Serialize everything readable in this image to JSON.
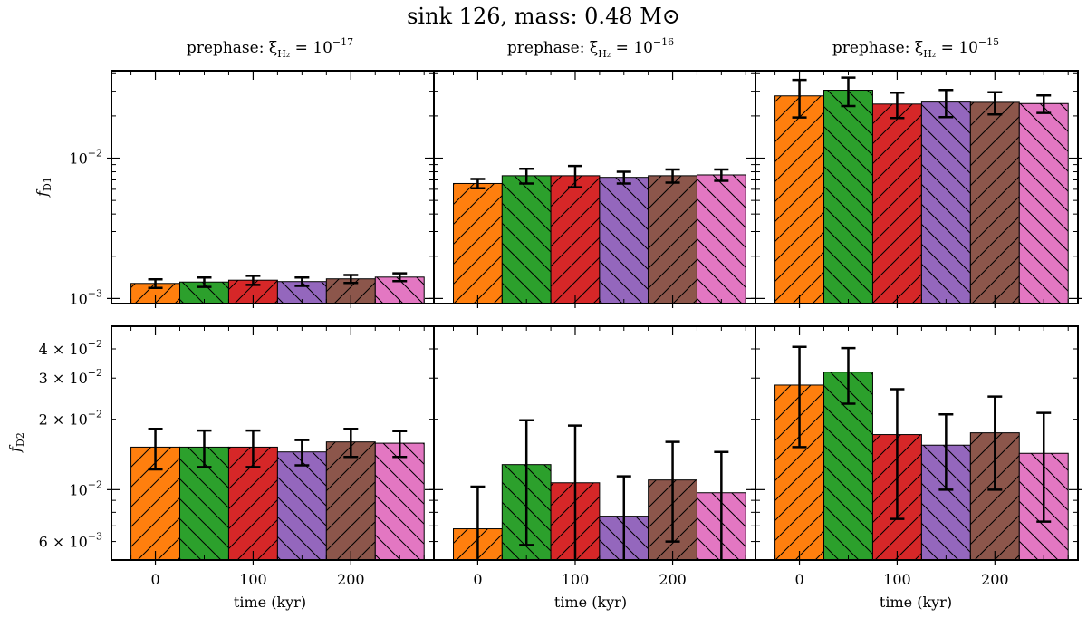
{
  "figure": {
    "title": "sink 126, mass: 0.48 M⊙",
    "xlabel": "time (kyr)",
    "row_labels": [
      "f",
      "f"
    ],
    "row_label_subs": [
      "D1",
      "D2"
    ],
    "column_titles": [
      {
        "prefix": "prephase: ξ",
        "sub": "H₂",
        "eq": " = 10",
        "exp": "−17"
      },
      {
        "prefix": "prephase: ξ",
        "sub": "H₂",
        "eq": " = 10",
        "exp": "−16"
      },
      {
        "prefix": "prephase: ξ",
        "sub": "H₂",
        "eq": " = 10",
        "exp": "−15"
      }
    ],
    "colors": [
      "#ff7f0e",
      "#2ca02c",
      "#d62728",
      "#9467bd",
      "#8c564b",
      "#e377c2"
    ],
    "hatch_directions": [
      "/",
      "\\",
      "/",
      "\\",
      "/",
      "\\"
    ]
  },
  "chart_data": {
    "type": "bar",
    "scale": "log",
    "x": [
      0,
      50,
      100,
      150,
      200,
      250
    ],
    "bar_width": 50,
    "xlim": [
      -45,
      285
    ],
    "xticks": [
      0,
      100,
      200
    ],
    "xtick_labels": [
      "0",
      "100",
      "200"
    ],
    "rows": [
      {
        "name": "fD1",
        "ylim": [
          0.00092,
          0.042
        ],
        "yticks": [
          {
            "value": 0.001,
            "mant": "10",
            "exp": "−3"
          },
          {
            "value": 0.01,
            "mant": "10",
            "exp": "−2"
          }
        ],
        "panels": [
          {
            "values": [
              0.00128,
              0.00131,
              0.00135,
              0.00132,
              0.00138,
              0.00142
            ],
            "err_low": [
              9e-05,
              0.0001,
              0.0001,
              9e-05,
              9e-05,
              9e-05
            ],
            "err_high": [
              9e-05,
              0.0001,
              0.0001,
              9e-05,
              9e-05,
              9e-05
            ]
          },
          {
            "values": [
              0.0066,
              0.0075,
              0.0075,
              0.0073,
              0.0075,
              0.0076
            ],
            "err_low": [
              0.0005,
              0.0009,
              0.0013,
              0.0007,
              0.0008,
              0.0007
            ],
            "err_high": [
              0.0005,
              0.0009,
              0.0013,
              0.0007,
              0.0008,
              0.0007
            ]
          },
          {
            "values": [
              0.0278,
              0.0305,
              0.0243,
              0.0251,
              0.025,
              0.0245
            ],
            "err_low": [
              0.0083,
              0.007,
              0.005,
              0.0055,
              0.0045,
              0.0035
            ],
            "err_high": [
              0.0083,
              0.007,
              0.005,
              0.0055,
              0.0045,
              0.0035
            ]
          }
        ]
      },
      {
        "name": "fD2",
        "ylim": [
          0.005,
          0.05
        ],
        "yticks": [
          {
            "value": 0.006,
            "mant": "6 × 10",
            "exp": "−3"
          },
          {
            "value": 0.01,
            "mant": "10",
            "exp": "−2"
          },
          {
            "value": 0.02,
            "mant": "2 × 10",
            "exp": "−2"
          },
          {
            "value": 0.03,
            "mant": "3 × 10",
            "exp": "−2"
          },
          {
            "value": 0.04,
            "mant": "4 × 10",
            "exp": "−2"
          }
        ],
        "panels": [
          {
            "values": [
              0.0152,
              0.0152,
              0.0152,
              0.0145,
              0.016,
              0.0158
            ],
            "err_low": [
              0.003,
              0.0027,
              0.0027,
              0.0018,
              0.0022,
              0.002
            ],
            "err_high": [
              0.003,
              0.0027,
              0.0027,
              0.0018,
              0.0022,
              0.002
            ]
          },
          {
            "values": [
              0.0068,
              0.0128,
              0.0107,
              0.0077,
              0.011,
              0.0097
            ],
            "err_low": [
              0.0035,
              0.007,
              0.0081,
              0.0037,
              0.005,
              0.0048
            ],
            "err_high": [
              0.0035,
              0.007,
              0.0081,
              0.0037,
              0.005,
              0.0048
            ]
          },
          {
            "values": [
              0.028,
              0.0318,
              0.0172,
              0.0155,
              0.0175,
              0.0143
            ],
            "err_low": [
              0.0128,
              0.0085,
              0.0097,
              0.0055,
              0.0075,
              0.007
            ],
            "err_high": [
              0.0128,
              0.0085,
              0.0097,
              0.0055,
              0.0075,
              0.007
            ]
          }
        ]
      }
    ]
  }
}
